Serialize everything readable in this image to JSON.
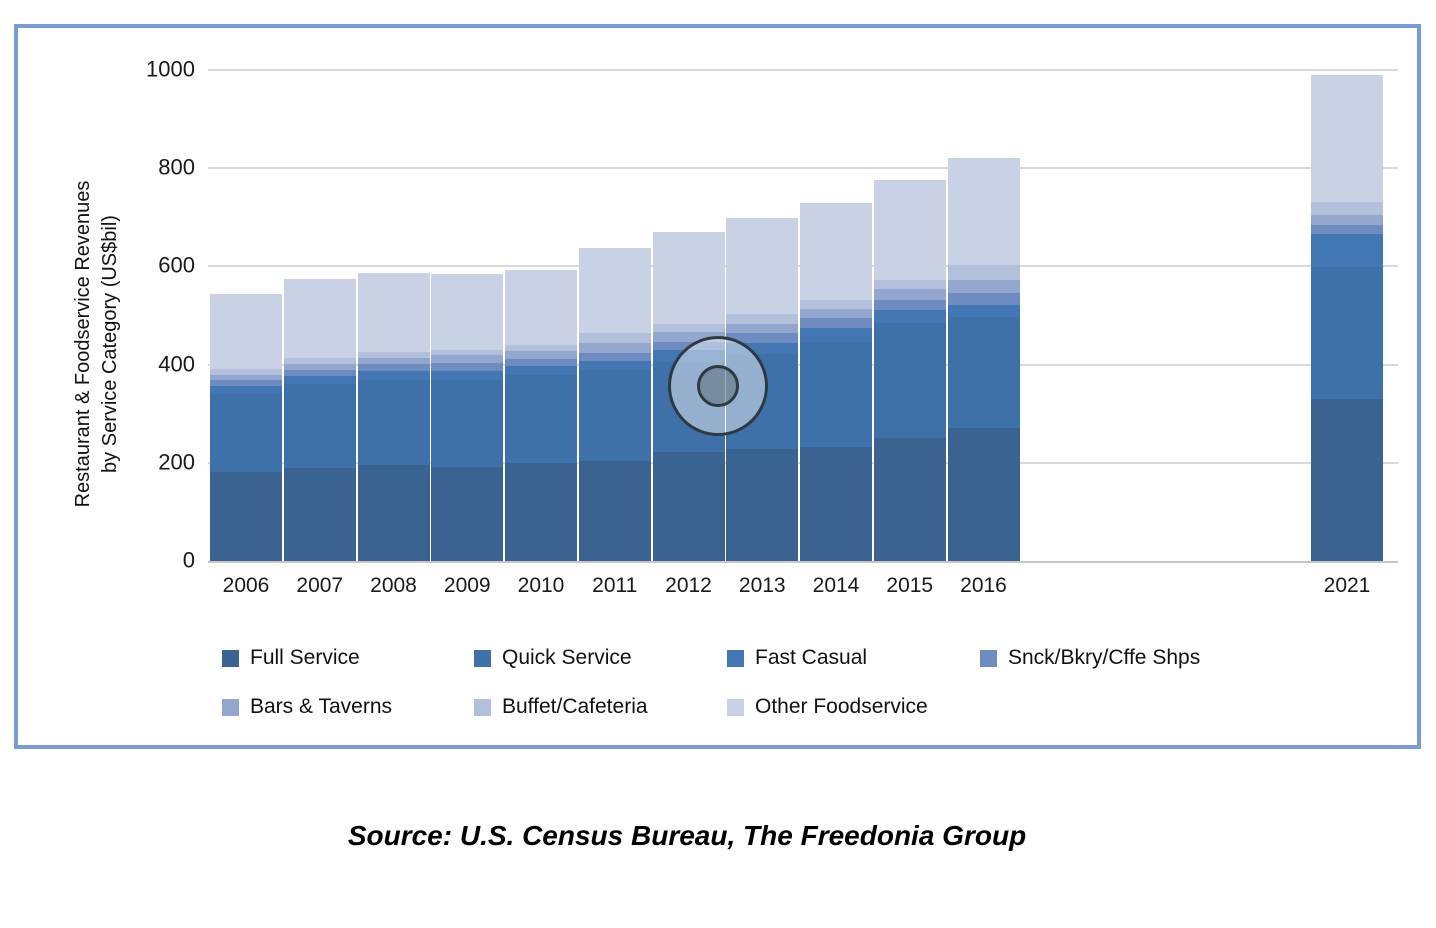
{
  "y_axis": {
    "title_line1": "Restaurant & Foodservice Revenues",
    "title_line2": "by Service Category (US$bil)",
    "tick_labels": [
      "0",
      "200",
      "400",
      "600",
      "800",
      "1000"
    ]
  },
  "source_text": "Source: U.S. Census Bureau, The Freedonia Group",
  "chart_data": {
    "type": "bar",
    "stacked": true,
    "title": "",
    "ylabel": "Restaurant & Foodservice Revenues by Service Category (US$bil)",
    "xlabel": "",
    "ylim": [
      0,
      1000
    ],
    "yticks": [
      0,
      200,
      400,
      600,
      800,
      1000
    ],
    "grid": true,
    "legend_position": "bottom",
    "categories": [
      "2006",
      "2007",
      "2008",
      "2009",
      "2010",
      "2011",
      "2012",
      "2013",
      "2014",
      "2015",
      "2016",
      "2021"
    ],
    "series": [
      {
        "name": "Full Service",
        "color": "#3a6391",
        "values": [
          181,
          190,
          195,
          192,
          200,
          204,
          221,
          229,
          233,
          250,
          271,
          330
        ]
      },
      {
        "name": "Quick Service",
        "color": "#3e71a8",
        "values": [
          160,
          170,
          173,
          176,
          178,
          185,
          184,
          193,
          214,
          235,
          225,
          269
        ]
      },
      {
        "name": "Fast Casual",
        "color": "#4277b3",
        "values": [
          15,
          17,
          19,
          19,
          19,
          19,
          24,
          22,
          28,
          26,
          25,
          66
        ]
      },
      {
        "name": "Snck/Bkry/Cffe Shps",
        "color": "#6e8cbf",
        "values": [
          12,
          12,
          15,
          16,
          15,
          16,
          18,
          21,
          20,
          20,
          24,
          19
        ]
      },
      {
        "name": "Bars & Taverns",
        "color": "#92a6ce",
        "values": [
          10,
          13,
          12,
          16,
          16,
          20,
          19,
          18,
          19,
          22,
          27,
          20
        ]
      },
      {
        "name": "Buffet/Cafeteria",
        "color": "#b3c0dc",
        "values": [
          14,
          12,
          11,
          10,
          12,
          21,
          17,
          20,
          17,
          20,
          30,
          27
        ]
      },
      {
        "name": "Other Foodservice",
        "color": "#c9d2e5",
        "values": [
          151,
          161,
          162,
          156,
          152,
          173,
          188,
          196,
          199,
          202,
          218,
          259
        ]
      }
    ],
    "totals": [
      543,
      575,
      587,
      585,
      592,
      638,
      671,
      699,
      730,
      775,
      820,
      990
    ],
    "annotation": {
      "type": "click-indicator",
      "between_years": [
        "2012",
        "2013"
      ],
      "fraction_from_2012_center": 0.4,
      "approx_value_usd_bil": 356
    }
  }
}
